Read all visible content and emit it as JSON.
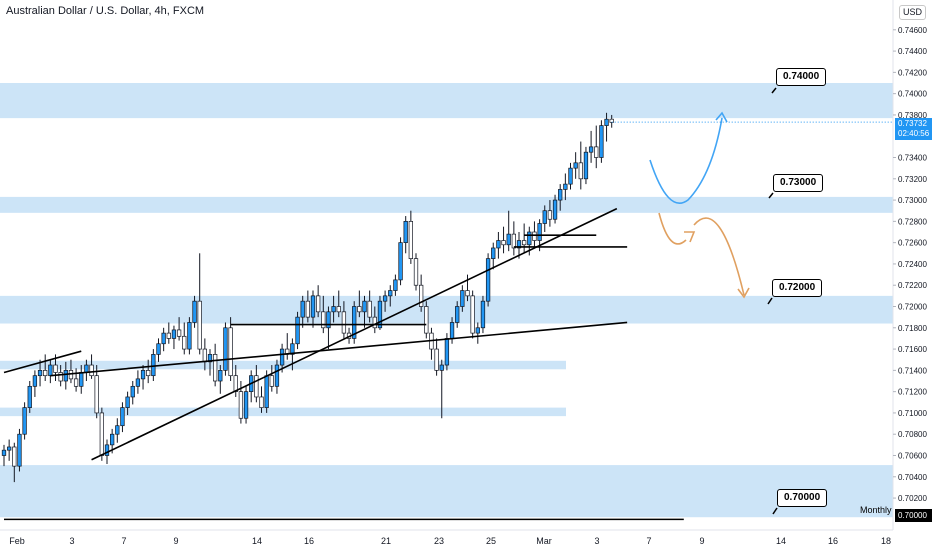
{
  "header": {
    "title": "Australian Dollar / U.S. Dollar, 4h, FXCM",
    "currency_button": "USD"
  },
  "price_now": {
    "value": "0.73732",
    "countdown": "02:40:56"
  },
  "chart_data": {
    "type": "candlestick",
    "y_axis": {
      "ylim": [
        0.699,
        0.7488
      ],
      "ticks": [
        "0.74600",
        "0.74400",
        "0.74200",
        "0.74000",
        "0.73800",
        "0.73400",
        "0.73200",
        "0.73000",
        "0.72800",
        "0.72600",
        "0.72400",
        "0.72200",
        "0.72000",
        "0.71800",
        "0.71600",
        "0.71400",
        "0.71200",
        "0.71000",
        "0.70800",
        "0.70600",
        "0.70400",
        "0.70200"
      ]
    },
    "x_axis": {
      "ticks": [
        "Feb",
        "3",
        "7",
        "9",
        "14",
        "16",
        "21",
        "23",
        "25",
        "Mar",
        "3",
        "7",
        "9",
        "14",
        "16",
        "18"
      ]
    },
    "zones": [
      {
        "from": 0.7377,
        "to": 0.741
      },
      {
        "from": 0.7288,
        "to": 0.7303
      },
      {
        "from": 0.7184,
        "to": 0.721
      },
      {
        "from": 0.7141,
        "to": 0.7149,
        "short": true
      },
      {
        "from": 0.7097,
        "to": 0.7105,
        "short": true
      },
      {
        "from": 0.7002,
        "to": 0.7051
      }
    ],
    "levels": [
      {
        "label": "0.74000",
        "value": 0.74
      },
      {
        "label": "0.73000",
        "value": 0.73
      },
      {
        "label": "0.72000",
        "value": 0.72
      },
      {
        "label": "0.70000",
        "value": 0.7
      }
    ],
    "monthly_line": {
      "value": 0.7,
      "label": "Monthly",
      "price_label": "0.70000"
    },
    "current_price": 0.73732,
    "colors": {
      "up": "#2196f3",
      "down": "#ffffff",
      "wick": "#131722",
      "zone": "#cce4f7",
      "forecast_up": "#42a5f5",
      "forecast_down": "#e0a060"
    },
    "candles": [
      [
        0.706,
        0.707,
        0.705,
        0.7065
      ],
      [
        0.7065,
        0.7075,
        0.7055,
        0.7068
      ],
      [
        0.7068,
        0.7072,
        0.7035,
        0.705
      ],
      [
        0.705,
        0.7085,
        0.7045,
        0.708
      ],
      [
        0.708,
        0.711,
        0.7075,
        0.7105
      ],
      [
        0.7105,
        0.713,
        0.71,
        0.7125
      ],
      [
        0.7125,
        0.714,
        0.7115,
        0.7135
      ],
      [
        0.7135,
        0.715,
        0.7125,
        0.714
      ],
      [
        0.714,
        0.7155,
        0.713,
        0.7135
      ],
      [
        0.7135,
        0.715,
        0.7128,
        0.7145
      ],
      [
        0.7145,
        0.7155,
        0.713,
        0.7138
      ],
      [
        0.7138,
        0.7145,
        0.7125,
        0.713
      ],
      [
        0.713,
        0.7148,
        0.7122,
        0.714
      ],
      [
        0.714,
        0.715,
        0.7128,
        0.7132
      ],
      [
        0.7132,
        0.7142,
        0.712,
        0.7125
      ],
      [
        0.7125,
        0.7145,
        0.7118,
        0.7138
      ],
      [
        0.7138,
        0.715,
        0.713,
        0.7145
      ],
      [
        0.7145,
        0.7155,
        0.7132,
        0.7135
      ],
      [
        0.7135,
        0.7145,
        0.7095,
        0.71
      ],
      [
        0.71,
        0.7105,
        0.7055,
        0.706
      ],
      [
        0.706,
        0.7075,
        0.7052,
        0.707
      ],
      [
        0.707,
        0.7085,
        0.7062,
        0.708
      ],
      [
        0.708,
        0.7095,
        0.7072,
        0.7088
      ],
      [
        0.7088,
        0.711,
        0.7082,
        0.7105
      ],
      [
        0.7105,
        0.712,
        0.7098,
        0.7115
      ],
      [
        0.7115,
        0.713,
        0.7108,
        0.7125
      ],
      [
        0.7125,
        0.714,
        0.7118,
        0.7132
      ],
      [
        0.7132,
        0.7145,
        0.7122,
        0.714
      ],
      [
        0.714,
        0.715,
        0.7128,
        0.7135
      ],
      [
        0.7135,
        0.716,
        0.713,
        0.7155
      ],
      [
        0.7155,
        0.717,
        0.7148,
        0.7165
      ],
      [
        0.7165,
        0.718,
        0.7158,
        0.7175
      ],
      [
        0.7175,
        0.7185,
        0.7165,
        0.717
      ],
      [
        0.717,
        0.7182,
        0.716,
        0.7178
      ],
      [
        0.7178,
        0.719,
        0.7168,
        0.7172
      ],
      [
        0.7172,
        0.7185,
        0.7155,
        0.716
      ],
      [
        0.716,
        0.719,
        0.7155,
        0.7185
      ],
      [
        0.7185,
        0.721,
        0.718,
        0.7205
      ],
      [
        0.7205,
        0.725,
        0.7155,
        0.716
      ],
      [
        0.716,
        0.717,
        0.714,
        0.7148
      ],
      [
        0.7148,
        0.716,
        0.7135,
        0.7155
      ],
      [
        0.7155,
        0.7165,
        0.7125,
        0.713
      ],
      [
        0.713,
        0.7145,
        0.7118,
        0.714
      ],
      [
        0.714,
        0.7185,
        0.7135,
        0.718
      ],
      [
        0.718,
        0.719,
        0.713,
        0.7135
      ],
      [
        0.7135,
        0.7145,
        0.7115,
        0.712
      ],
      [
        0.712,
        0.713,
        0.709,
        0.7095
      ],
      [
        0.7095,
        0.7125,
        0.709,
        0.712
      ],
      [
        0.712,
        0.714,
        0.711,
        0.7135
      ],
      [
        0.7135,
        0.7145,
        0.711,
        0.7115
      ],
      [
        0.7115,
        0.7125,
        0.71,
        0.7105
      ],
      [
        0.7105,
        0.714,
        0.71,
        0.7135
      ],
      [
        0.7135,
        0.7145,
        0.712,
        0.7125
      ],
      [
        0.7125,
        0.715,
        0.7118,
        0.7145
      ],
      [
        0.7145,
        0.7165,
        0.7138,
        0.716
      ],
      [
        0.716,
        0.7175,
        0.715,
        0.7155
      ],
      [
        0.7155,
        0.717,
        0.714,
        0.7165
      ],
      [
        0.7165,
        0.7195,
        0.716,
        0.719
      ],
      [
        0.719,
        0.721,
        0.718,
        0.7205
      ],
      [
        0.7205,
        0.7215,
        0.7185,
        0.719
      ],
      [
        0.719,
        0.7215,
        0.718,
        0.721
      ],
      [
        0.721,
        0.722,
        0.719,
        0.7195
      ],
      [
        0.7195,
        0.721,
        0.7175,
        0.718
      ],
      [
        0.718,
        0.72,
        0.716,
        0.7195
      ],
      [
        0.7195,
        0.721,
        0.7185,
        0.72
      ],
      [
        0.72,
        0.7215,
        0.719,
        0.7195
      ],
      [
        0.7195,
        0.7205,
        0.717,
        0.7175
      ],
      [
        0.7175,
        0.718,
        0.7165,
        0.717
      ],
      [
        0.717,
        0.7205,
        0.7165,
        0.72
      ],
      [
        0.72,
        0.7215,
        0.719,
        0.7195
      ],
      [
        0.7195,
        0.721,
        0.718,
        0.7205
      ],
      [
        0.7205,
        0.7215,
        0.7185,
        0.719
      ],
      [
        0.719,
        0.72,
        0.7175,
        0.718
      ],
      [
        0.718,
        0.721,
        0.7178,
        0.7205
      ],
      [
        0.7205,
        0.7215,
        0.7195,
        0.721
      ],
      [
        0.721,
        0.722,
        0.72,
        0.7215
      ],
      [
        0.7215,
        0.723,
        0.721,
        0.7225
      ],
      [
        0.7225,
        0.7265,
        0.722,
        0.726
      ],
      [
        0.726,
        0.7285,
        0.725,
        0.728
      ],
      [
        0.728,
        0.729,
        0.724,
        0.7245
      ],
      [
        0.7245,
        0.725,
        0.7215,
        0.722
      ],
      [
        0.722,
        0.723,
        0.7195,
        0.72
      ],
      [
        0.72,
        0.7205,
        0.717,
        0.7175
      ],
      [
        0.7175,
        0.718,
        0.715,
        0.716
      ],
      [
        0.716,
        0.717,
        0.7135,
        0.714
      ],
      [
        0.714,
        0.715,
        0.7095,
        0.7145
      ],
      [
        0.7145,
        0.7175,
        0.714,
        0.717
      ],
      [
        0.717,
        0.719,
        0.7165,
        0.7185
      ],
      [
        0.7185,
        0.7205,
        0.718,
        0.72
      ],
      [
        0.72,
        0.722,
        0.7195,
        0.7215
      ],
      [
        0.7215,
        0.723,
        0.7205,
        0.721
      ],
      [
        0.721,
        0.7215,
        0.717,
        0.7175
      ],
      [
        0.7175,
        0.7185,
        0.7165,
        0.718
      ],
      [
        0.718,
        0.721,
        0.7175,
        0.7205
      ],
      [
        0.7205,
        0.725,
        0.72,
        0.7245
      ],
      [
        0.7245,
        0.726,
        0.7235,
        0.7255
      ],
      [
        0.7255,
        0.727,
        0.7245,
        0.7262
      ],
      [
        0.7262,
        0.7275,
        0.725,
        0.7258
      ],
      [
        0.7258,
        0.729,
        0.7252,
        0.7268
      ],
      [
        0.7268,
        0.728,
        0.7248,
        0.7255
      ],
      [
        0.7255,
        0.727,
        0.7245,
        0.7262
      ],
      [
        0.7262,
        0.7278,
        0.725,
        0.7258
      ],
      [
        0.7258,
        0.7275,
        0.7248,
        0.727
      ],
      [
        0.727,
        0.728,
        0.7255,
        0.7262
      ],
      [
        0.7262,
        0.7282,
        0.7252,
        0.7278
      ],
      [
        0.7278,
        0.7295,
        0.727,
        0.729
      ],
      [
        0.729,
        0.73,
        0.7275,
        0.7282
      ],
      [
        0.7282,
        0.7305,
        0.7278,
        0.73
      ],
      [
        0.73,
        0.7315,
        0.729,
        0.731
      ],
      [
        0.731,
        0.7325,
        0.73,
        0.7315
      ],
      [
        0.7315,
        0.7335,
        0.731,
        0.733
      ],
      [
        0.733,
        0.7345,
        0.732,
        0.7335
      ],
      [
        0.7335,
        0.7355,
        0.731,
        0.732
      ],
      [
        0.732,
        0.735,
        0.7315,
        0.7345
      ],
      [
        0.7345,
        0.7365,
        0.7335,
        0.735
      ],
      [
        0.735,
        0.737,
        0.733,
        0.734
      ],
      [
        0.734,
        0.7375,
        0.7335,
        0.737
      ],
      [
        0.737,
        0.7382,
        0.7355,
        0.7376
      ],
      [
        0.7376,
        0.738,
        0.7368,
        0.7373
      ]
    ],
    "trendlines": [
      {
        "from": [
          0,
          0.7138
        ],
        "to": [
          15,
          0.7158
        ]
      },
      {
        "from": [
          17,
          0.7056
        ],
        "to": [
          119,
          0.7292
        ]
      },
      {
        "from": [
          9,
          0.7135
        ],
        "to": [
          121,
          0.7185
        ]
      },
      {
        "from": [
          44,
          0.7183
        ],
        "to": [
          82,
          0.7183
        ]
      },
      {
        "from": [
          101,
          0.7267
        ],
        "to": [
          115,
          0.7267
        ]
      },
      {
        "from": [
          99,
          0.7256
        ],
        "to": [
          121,
          0.7256
        ]
      },
      {
        "from": [
          0,
          0.7
        ],
        "to": [
          132,
          0.7
        ]
      }
    ]
  }
}
